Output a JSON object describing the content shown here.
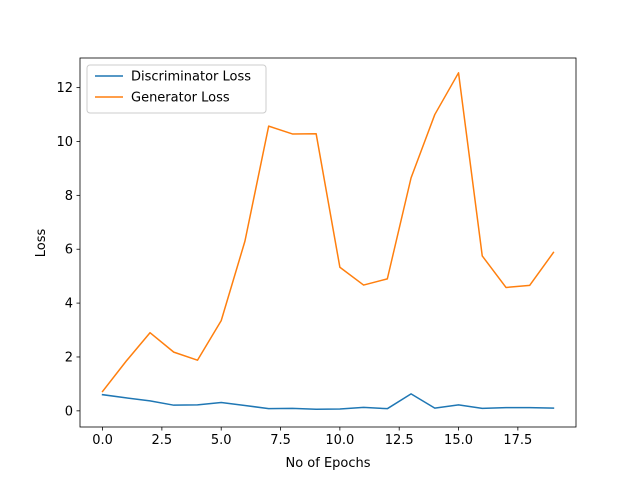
{
  "chart_data": {
    "type": "line",
    "title": "",
    "xlabel": "No of Epochs",
    "ylabel": "Loss",
    "xlim": [
      -0.95,
      19.95
    ],
    "ylim": [
      -0.6,
      13.1
    ],
    "xticks": [
      0,
      2.5,
      5,
      7.5,
      10,
      12.5,
      15,
      17.5
    ],
    "xtick_labels": [
      "0.0",
      "2.5",
      "5.0",
      "7.5",
      "10.0",
      "12.5",
      "15.0",
      "17.5"
    ],
    "yticks": [
      0,
      2,
      4,
      6,
      8,
      10,
      12
    ],
    "ytick_labels": [
      "0",
      "2",
      "4",
      "6",
      "8",
      "10",
      "12"
    ],
    "grid": false,
    "legend_position": "upper-left",
    "x": [
      0,
      1,
      2,
      3,
      4,
      5,
      6,
      7,
      8,
      9,
      10,
      11,
      12,
      13,
      14,
      15,
      16,
      17,
      18,
      19
    ],
    "series": [
      {
        "name": "Discriminator Loss",
        "color": "#1f77b4",
        "values": [
          0.6,
          0.48,
          0.37,
          0.21,
          0.22,
          0.31,
          0.2,
          0.08,
          0.09,
          0.06,
          0.07,
          0.13,
          0.08,
          0.63,
          0.1,
          0.22,
          0.09,
          0.12,
          0.12,
          0.1
        ]
      },
      {
        "name": "Generator Loss",
        "color": "#ff7f0e",
        "values": [
          0.72,
          1.85,
          2.9,
          2.18,
          1.88,
          3.35,
          6.3,
          10.57,
          10.28,
          10.29,
          5.33,
          4.67,
          4.9,
          8.65,
          11.0,
          12.55,
          5.75,
          4.58,
          4.66,
          5.88
        ]
      }
    ]
  }
}
